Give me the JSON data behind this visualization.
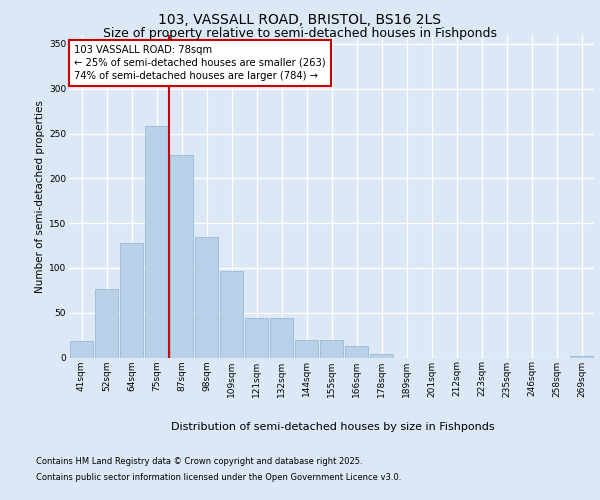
{
  "title1": "103, VASSALL ROAD, BRISTOL, BS16 2LS",
  "title2": "Size of property relative to semi-detached houses in Fishponds",
  "xlabel": "Distribution of semi-detached houses by size in Fishponds",
  "ylabel": "Number of semi-detached properties",
  "categories": [
    "41sqm",
    "52sqm",
    "64sqm",
    "75sqm",
    "87sqm",
    "98sqm",
    "109sqm",
    "121sqm",
    "132sqm",
    "144sqm",
    "155sqm",
    "166sqm",
    "178sqm",
    "189sqm",
    "201sqm",
    "212sqm",
    "223sqm",
    "235sqm",
    "246sqm",
    "258sqm",
    "269sqm"
  ],
  "values": [
    18,
    76,
    128,
    258,
    226,
    135,
    97,
    44,
    44,
    20,
    20,
    13,
    4,
    0,
    0,
    0,
    0,
    0,
    0,
    0,
    2
  ],
  "bar_color": "#b8d0e8",
  "bar_edge_color": "#90b4d0",
  "vline_color": "#cc0000",
  "vline_x_index": 3,
  "annotation_text": "103 VASSALL ROAD: 78sqm\n← 25% of semi-detached houses are smaller (263)\n74% of semi-detached houses are larger (784) →",
  "annotation_box_color": "#ffffff",
  "annotation_box_edge": "#cc0000",
  "ylim": [
    0,
    360
  ],
  "yticks": [
    0,
    50,
    100,
    150,
    200,
    250,
    300,
    350
  ],
  "footnote1": "Contains HM Land Registry data © Crown copyright and database right 2025.",
  "footnote2": "Contains public sector information licensed under the Open Government Licence v3.0.",
  "bg_color": "#dce8f5",
  "title1_fontsize": 10,
  "title2_fontsize": 9,
  "ylabel_fontsize": 7.5,
  "xlabel_fontsize": 8,
  "tick_fontsize": 6.5,
  "footnote_fontsize": 6
}
